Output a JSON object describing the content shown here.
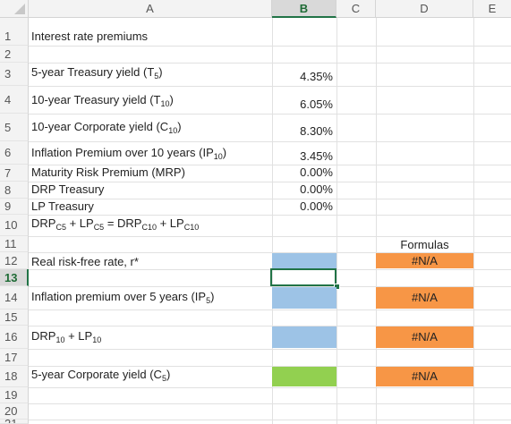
{
  "columns": [
    "A",
    "B",
    "C",
    "D",
    "E"
  ],
  "rows": [
    "1",
    "2",
    "3",
    "4",
    "5",
    "6",
    "7",
    "8",
    "9",
    "10",
    "11",
    "12",
    "13",
    "14",
    "15",
    "16",
    "17",
    "18",
    "19",
    "20",
    "21"
  ],
  "active_cell": "B13",
  "colors": {
    "header_bg": "#f3f3f3",
    "select_green": "#217346",
    "input_blue": "#9dc3e6",
    "result_green": "#92d050",
    "formula_orange": "#f79646"
  },
  "cells": {
    "a1": "Interest rate premiums",
    "a3": {
      "pre": "5-year Treasury yield (T",
      "sub": "5",
      "post": ")"
    },
    "b3": "4.35%",
    "a4": {
      "pre": "10-year Treasury yield (T",
      "sub": "10",
      "post": ")"
    },
    "b4": "6.05%",
    "a5": {
      "pre": "10-year Corporate yield (C",
      "sub": "10",
      "post": ")"
    },
    "b5": "8.30%",
    "a6": {
      "pre": "Inflation Premium over 10 years (IP",
      "sub": "10",
      "post": ")"
    },
    "b6": "3.45%",
    "a7": "Maturity Risk Premium (MRP)",
    "b7": "0.00%",
    "a8": "DRP Treasury",
    "b8": "0.00%",
    "a9": "LP Treasury",
    "b9": "0.00%",
    "a10": {
      "t1": "DRP",
      "s1": "C5",
      "t2": " + LP",
      "s2": "C5",
      "t3": " = DRP",
      "s3": "C10",
      "t4": " + LP",
      "s4": "C10"
    },
    "d11": "Formulas",
    "a12": "Real risk-free rate, r*",
    "d12": "#N/A",
    "a14": {
      "pre": "Inflation premium over 5 years (IP",
      "sub": "5",
      "post": ")"
    },
    "d14": "#N/A",
    "a16": {
      "t1": "DRP",
      "s1": "10",
      "t2": " + LP",
      "s2": "10"
    },
    "d16": "#N/A",
    "a18": {
      "pre": "5-year Corporate yield (C",
      "sub": "5",
      "post": ")"
    },
    "d18": "#N/A"
  }
}
